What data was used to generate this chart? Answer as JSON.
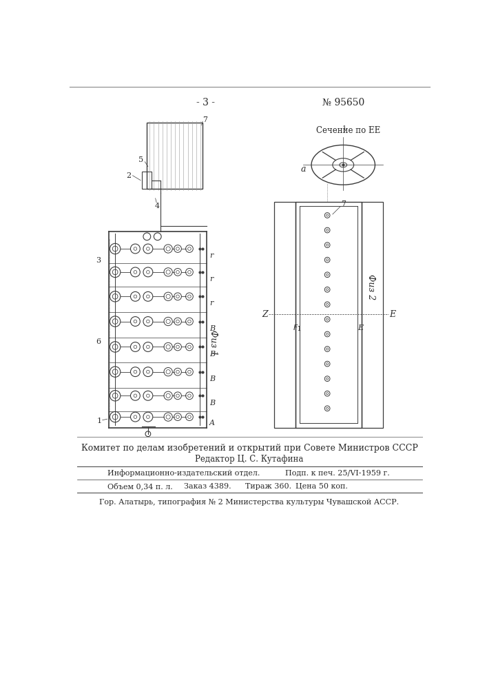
{
  "page_number": "- 3 -",
  "patent_number": "№ 95650",
  "section_label": "Сечение по ЕЕ",
  "fig1_label": "Физ 1",
  "fig2_label": "Физ 2",
  "committee_text": "Комитет по делам изобретений и открытий при Совете Министров СССР",
  "editor_text": "Редактор Ц. С. Кутафина",
  "info_row1_col1": "Информационно-издательский отдел.",
  "info_row1_col2": "Подп. к печ. 25/VI-1959 г.",
  "info_row2_col1": "Объем 0,34 п. л.",
  "info_row2_col2": "Заказ 4389.",
  "info_row2_col3": "Тираж 360.",
  "info_row2_col4": "Цена 50 коп.",
  "bottom_text": "Гор. Алатырь, типография № 2 Министерства культуры Чувашской АССР.",
  "bg_color": "#ffffff",
  "text_color": "#2a2a2a",
  "line_color": "#3a3a3a"
}
